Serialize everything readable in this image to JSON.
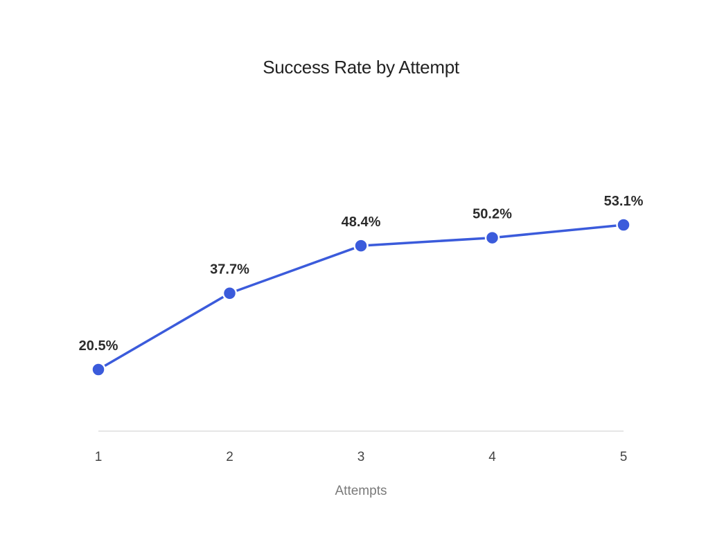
{
  "chart_data": {
    "type": "line",
    "title": "Success Rate by Attempt",
    "xlabel": "Attempts",
    "ylabel": "",
    "x": [
      "1",
      "2",
      "3",
      "4",
      "5"
    ],
    "series": [
      {
        "values": [
          20.5,
          37.7,
          48.4,
          50.2,
          53.1
        ],
        "labels": [
          "20.5%",
          "37.7%",
          "48.4%",
          "50.2%",
          "53.1%"
        ],
        "color": "#3b5bdb"
      }
    ],
    "ylim": [
      -10,
      80
    ],
    "grid": false,
    "legend": "none"
  },
  "colors": {
    "line": "#3b5bdb",
    "baseline": "#dddddd",
    "point_stroke": "#ffffff"
  }
}
